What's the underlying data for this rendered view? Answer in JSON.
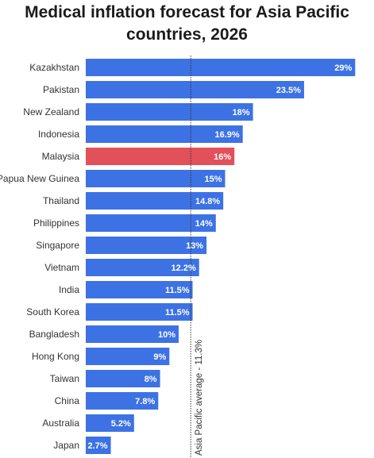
{
  "chart_data": {
    "type": "bar",
    "orientation": "horizontal",
    "title": "Medical inflation forecast for Asia Pacific countries, 2026",
    "categories": [
      "Kazakhstan",
      "Pakistan",
      "New Zealand",
      "Indonesia",
      "Malaysia",
      "Papua New Guinea",
      "Thailand",
      "Philippines",
      "Singapore",
      "Vietnam",
      "India",
      "South Korea",
      "Bangladesh",
      "Hong Kong",
      "Taiwan",
      "China",
      "Australia",
      "Japan"
    ],
    "values": [
      29,
      23.5,
      18,
      16.9,
      16,
      15,
      14.8,
      14,
      13,
      12.2,
      11.5,
      11.5,
      10,
      9,
      8,
      7.8,
      5.2,
      2.7
    ],
    "value_labels": [
      "29%",
      "23.5%",
      "18%",
      "16.9%",
      "16%",
      "15%",
      "14.8%",
      "14%",
      "13%",
      "12.2%",
      "11.5%",
      "11.5%",
      "10%",
      "9%",
      "8%",
      "7.8%",
      "5.2%",
      "2.7%"
    ],
    "highlight_category": "Malaysia",
    "reference_line": {
      "value": 11.3,
      "label": "Asia Pacific average - 11.3%",
      "style": "dotted"
    },
    "xlim": [
      0,
      29
    ],
    "xlabel": "",
    "ylabel": "",
    "grid": false,
    "legend": "none",
    "colors": {
      "bar": "#3d72e4",
      "highlight": "#e2505a",
      "value_label": "#ffffff",
      "category_label": "#333333",
      "reference_line": "#333333",
      "title": "#1b1b1b"
    }
  }
}
